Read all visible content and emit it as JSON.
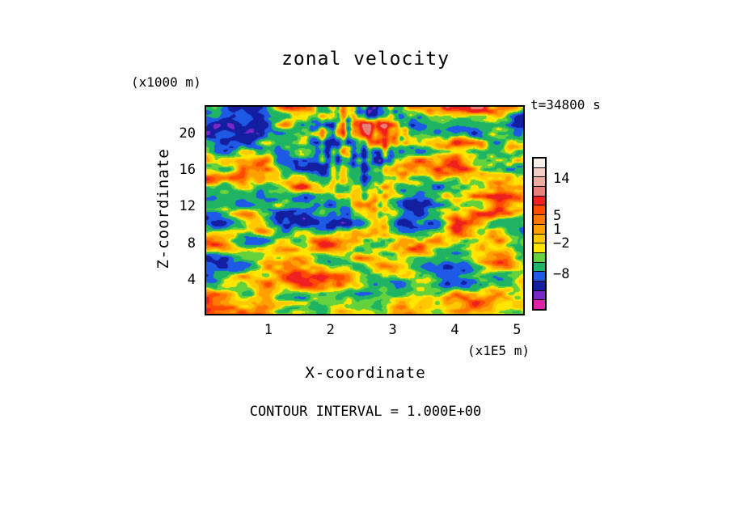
{
  "page": {
    "background": "#ffffff",
    "text_color": "#000000"
  },
  "chart_data": {
    "type": "heatmap",
    "title": "zonal velocity",
    "time_label": "t=34800 s",
    "xlabel": "X-coordinate",
    "ylabel": "Z-coordinate",
    "x_unit_label": "(x1E5 m)",
    "y_unit_label": "(x1000 m)",
    "contour_interval_label": "CONTOUR INTERVAL = 1.000E+00",
    "contour_interval": 1.0,
    "x_ticks": [
      1,
      2,
      3,
      4,
      5
    ],
    "y_ticks": [
      4,
      8,
      12,
      16,
      20
    ],
    "xlim": [
      0,
      5.1
    ],
    "ylim": [
      0.3,
      22.9
    ],
    "grid": false,
    "legend_position": "colorbar-right",
    "colorbar_labels": [
      {
        "text": "14",
        "value": 14,
        "pos": 0.135
      },
      {
        "text": "5",
        "value": 5,
        "pos": 0.38
      },
      {
        "text": "1",
        "value": 1,
        "pos": 0.47
      },
      {
        "text": "−2",
        "value": -2,
        "pos": 0.56
      },
      {
        "text": "−8",
        "value": -8,
        "pos": 0.76
      }
    ],
    "levels": [
      -9,
      -7,
      -4,
      -2,
      0,
      1,
      2,
      3,
      4,
      5,
      6,
      8,
      10,
      12,
      14
    ],
    "palette_low_to_high": [
      "#e020a8",
      "#7828c8",
      "#141ea0",
      "#1e5ae6",
      "#1eb464",
      "#64d23c",
      "#ffe600",
      "#ffc800",
      "#ffa000",
      "#ff7800",
      "#ff4b00",
      "#ee2020",
      "#e87f78",
      "#eeaba0",
      "#f2cfc4",
      "#f7efe9"
    ],
    "field": {
      "generator": "value-noise-octaves",
      "seed": 77,
      "mean": 1.4,
      "amplitude": 5.2
    }
  }
}
